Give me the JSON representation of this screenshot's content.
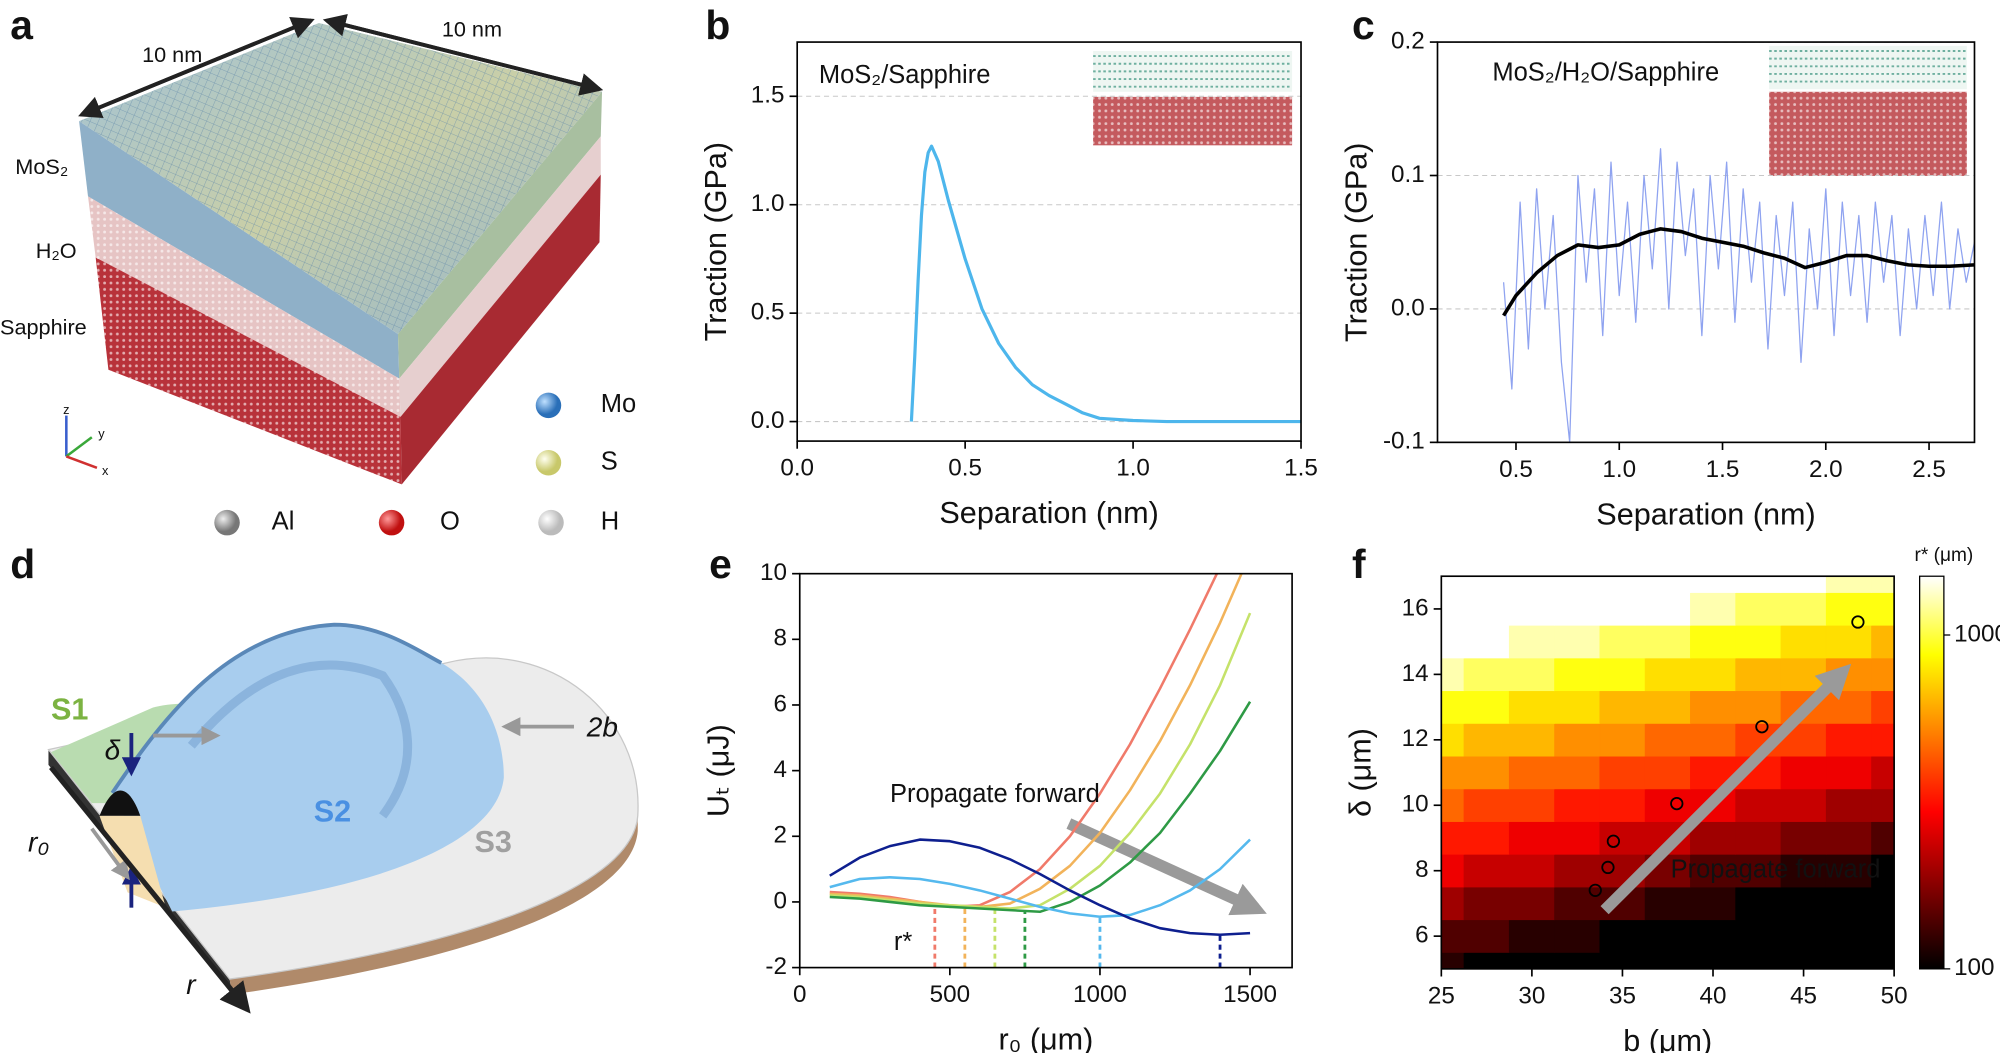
{
  "panels": {
    "a": {
      "letter": "a",
      "dims": [
        "10 nm",
        "10 nm"
      ],
      "layers": [
        "MoS₂",
        "H₂O",
        "Sapphire"
      ],
      "atoms": [
        "Mo",
        "S",
        "Al",
        "O",
        "H"
      ],
      "axes": [
        "z",
        "y",
        "x"
      ]
    },
    "d": {
      "letter": "d",
      "regions": [
        "S1",
        "S2",
        "S3"
      ],
      "symbols": [
        "δ",
        "r₀",
        "r",
        "2b"
      ]
    }
  },
  "chart_data": [
    {
      "type": "line",
      "panel": "b",
      "xlabel": "Separation (nm)",
      "ylabel": "Traction (GPa)",
      "annotations": [
        "MoS₂/Sapphire"
      ],
      "xlim": [
        0,
        1.5
      ],
      "xticks": [
        {
          "value": 0,
          "label": "0.0"
        },
        0.5,
        {
          "value": 1,
          "label": "1.0"
        },
        1.5
      ],
      "ylim": [
        -0.09,
        1.75
      ],
      "yticks": [
        {
          "value": 0,
          "label": "0.0"
        },
        0.5,
        {
          "value": 1,
          "label": "1.0"
        },
        1.5
      ],
      "grid": true,
      "series": [
        {
          "color": "#4db6ec",
          "x": [
            0.34,
            0.35,
            0.36,
            0.37,
            0.38,
            0.39,
            0.4,
            0.42,
            0.45,
            0.5,
            0.55,
            0.6,
            0.65,
            0.7,
            0.75,
            0.8,
            0.85,
            0.9,
            1.0,
            1.1,
            1.5
          ],
          "values": [
            0,
            0.3,
            0.65,
            0.95,
            1.15,
            1.24,
            1.27,
            1.2,
            1.02,
            0.75,
            0.52,
            0.36,
            0.25,
            0.17,
            0.12,
            0.08,
            0.04,
            0.015,
            0.005,
            0,
            0
          ]
        }
      ]
    },
    {
      "type": "line",
      "panel": "c",
      "xlabel": "Separation (nm)",
      "ylabel": "Traction (GPa)",
      "annotations": [
        "MoS₂/H₂O/Sapphire"
      ],
      "xlim": [
        0.12,
        2.72
      ],
      "xticks": [
        0.5,
        {
          "value": 1,
          "label": "1.0"
        },
        1.5,
        {
          "value": 2,
          "label": "2.0"
        },
        2.5
      ],
      "ylim": [
        -0.1,
        0.2
      ],
      "yticks": [
        -0.1,
        {
          "value": 0,
          "label": "0.0"
        },
        0.1,
        0.2
      ],
      "grid": true,
      "series": [
        {
          "color": "#8fa3f0",
          "x": [
            0.44,
            0.48,
            0.52,
            0.56,
            0.6,
            0.64,
            0.68,
            0.72,
            0.76,
            0.8,
            0.84,
            0.88,
            0.92,
            0.96,
            1.0,
            1.04,
            1.08,
            1.12,
            1.16,
            1.2,
            1.24,
            1.28,
            1.32,
            1.36,
            1.4,
            1.44,
            1.48,
            1.52,
            1.56,
            1.6,
            1.64,
            1.68,
            1.72,
            1.76,
            1.8,
            1.84,
            1.88,
            1.92,
            1.96,
            2.0,
            2.04,
            2.08,
            2.12,
            2.16,
            2.2,
            2.24,
            2.28,
            2.32,
            2.36,
            2.4,
            2.44,
            2.48,
            2.52,
            2.56,
            2.6,
            2.64,
            2.68,
            2.72
          ],
          "values": [
            0.02,
            -0.06,
            0.08,
            -0.03,
            0.09,
            0.0,
            0.07,
            -0.04,
            -0.1,
            0.1,
            0.02,
            0.09,
            -0.02,
            0.11,
            0.01,
            0.08,
            -0.01,
            0.1,
            0.03,
            0.12,
            0.0,
            0.11,
            0.04,
            0.09,
            -0.02,
            0.1,
            0.03,
            0.11,
            -0.01,
            0.09,
            0.02,
            0.08,
            -0.03,
            0.07,
            0.01,
            0.08,
            -0.04,
            0.06,
            0.0,
            0.09,
            -0.02,
            0.08,
            0.01,
            0.07,
            -0.01,
            0.08,
            0.02,
            0.07,
            -0.02,
            0.06,
            0.0,
            0.07,
            0.01,
            0.08,
            0.0,
            0.06,
            0.02,
            0.05
          ]
        },
        {
          "color": "#000000",
          "x": [
            0.44,
            0.5,
            0.6,
            0.7,
            0.8,
            0.9,
            1.0,
            1.1,
            1.2,
            1.3,
            1.4,
            1.5,
            1.6,
            1.7,
            1.8,
            1.9,
            2.0,
            2.1,
            2.2,
            2.3,
            2.4,
            2.5,
            2.6,
            2.72
          ],
          "values": [
            -0.005,
            0.01,
            0.027,
            0.04,
            0.048,
            0.046,
            0.048,
            0.056,
            0.06,
            0.058,
            0.053,
            0.05,
            0.047,
            0.042,
            0.038,
            0.031,
            0.035,
            0.04,
            0.04,
            0.036,
            0.033,
            0.032,
            0.032,
            0.033
          ]
        }
      ]
    },
    {
      "type": "line",
      "panel": "e",
      "xlabel": "r₀ (μm)",
      "ylabel": "Uₜ (μJ)",
      "annotations": [
        "Propagate forward",
        "r*"
      ],
      "xlim": [
        0,
        1640
      ],
      "xticks": [
        0,
        500,
        1000,
        1500
      ],
      "ylim": [
        -2,
        10
      ],
      "yticks": [
        -2,
        0,
        2,
        4,
        6,
        8,
        10
      ],
      "grid": false,
      "x": [
        100,
        200,
        300,
        400,
        500,
        600,
        700,
        800,
        900,
        1000,
        1100,
        1200,
        1300,
        1400,
        1500
      ],
      "series": [
        {
          "color": "#f07a6a",
          "r_star": 450,
          "values": [
            0.3,
            0.25,
            0.15,
            0.0,
            -0.15,
            -0.1,
            0.3,
            1.0,
            2.0,
            3.3,
            4.8,
            6.5,
            8.3,
            10.2,
            12.3
          ]
        },
        {
          "color": "#f2b35a",
          "r_star": 550,
          "values": [
            0.25,
            0.2,
            0.1,
            0.0,
            -0.1,
            -0.15,
            -0.05,
            0.4,
            1.1,
            2.1,
            3.4,
            4.9,
            6.6,
            8.5,
            10.6
          ]
        },
        {
          "color": "#c5e26a",
          "r_star": 650,
          "values": [
            0.2,
            0.15,
            0.05,
            -0.05,
            -0.1,
            -0.15,
            -0.2,
            -0.1,
            0.4,
            1.1,
            2.1,
            3.3,
            4.8,
            6.6,
            8.8
          ]
        },
        {
          "color": "#2e9a45",
          "r_star": 750,
          "values": [
            0.15,
            0.1,
            0.0,
            -0.1,
            -0.15,
            -0.2,
            -0.25,
            -0.3,
            0.0,
            0.5,
            1.2,
            2.1,
            3.3,
            4.6,
            6.1
          ]
        },
        {
          "color": "#55b9ee",
          "r_star": 1000,
          "values": [
            0.45,
            0.7,
            0.75,
            0.7,
            0.55,
            0.35,
            0.1,
            -0.15,
            -0.35,
            -0.45,
            -0.4,
            -0.1,
            0.35,
            1.0,
            1.9
          ]
        },
        {
          "color": "#0e1f8f",
          "r_star": 1400,
          "values": [
            0.8,
            1.35,
            1.7,
            1.9,
            1.85,
            1.65,
            1.3,
            0.85,
            0.35,
            -0.1,
            -0.5,
            -0.8,
            -0.95,
            -1.0,
            -0.95
          ]
        }
      ]
    },
    {
      "type": "heatmap",
      "panel": "f",
      "xlabel": "b (μm)",
      "ylabel": "δ (μm)",
      "annotations": [
        "Propagate forward"
      ],
      "xlim": [
        25,
        50
      ],
      "xticks": [
        25,
        30,
        35,
        40,
        45,
        50
      ],
      "ylim": [
        5,
        17
      ],
      "yticks": [
        6,
        8,
        10,
        12,
        14,
        16
      ],
      "grid": false,
      "x": [
        25,
        27.5,
        30,
        32.5,
        35,
        37.5,
        40,
        42.5,
        45,
        47.5,
        50
      ],
      "y": [
        5,
        6,
        7,
        8,
        9,
        10,
        11,
        12,
        13,
        14,
        15,
        16,
        17
      ],
      "z": [
        [
          126,
          116,
          106,
          97,
          89,
          82,
          75,
          69,
          63,
          58,
          53
        ],
        [
          164,
          150,
          138,
          127,
          116,
          107,
          98,
          90,
          82,
          75,
          69
        ],
        [
          214,
          196,
          180,
          165,
          151,
          139,
          127,
          117,
          107,
          98,
          90
        ],
        [
          279,
          255,
          234,
          215,
          197,
          181,
          166,
          152,
          140,
          128,
          117
        ],
        [
          363,
          333,
          305,
          280,
          257,
          236,
          216,
          198,
          182,
          167,
          153
        ],
        [
          473,
          434,
          398,
          365,
          335,
          307,
          282,
          258,
          237,
          217,
          199
        ],
        [
          617,
          566,
          518,
          475,
          436,
          400,
          367,
          337,
          309,
          283,
          260
        ],
        [
          803,
          737,
          676,
          620,
          568,
          521,
          478,
          439,
          402,
          369,
          338
        ],
        [
          1047,
          960,
          880,
          807,
          741,
          679,
          623,
          572,
          524,
          481,
          441
        ],
        [
          1364,
          1251,
          1147,
          1052,
          965,
          885,
          812,
          745,
          683,
          627,
          575
        ],
        [
          1777,
          1630,
          1495,
          1371,
          1258,
          1154,
          1058,
          971,
          890,
          817,
          749
        ],
        [
          2315,
          2124,
          1948,
          1787,
          1639,
          1503,
          1379,
          1265,
          1160,
          1064,
          976
        ],
        [
          3017,
          2767,
          2538,
          2328,
          2135,
          1959,
          1797,
          1648,
          1512,
          1387,
          1272
        ]
      ],
      "points": {
        "x": [
          33.5,
          34.2,
          34.5,
          38,
          42.7,
          48
        ],
        "y": [
          7.4,
          8.1,
          8.9,
          10.05,
          12.4,
          15.6
        ]
      },
      "colorbar": {
        "label": "r* (μm)",
        "lim": [
          100,
          1500
        ],
        "ticks": [
          100,
          1000
        ],
        "log": true
      }
    }
  ]
}
